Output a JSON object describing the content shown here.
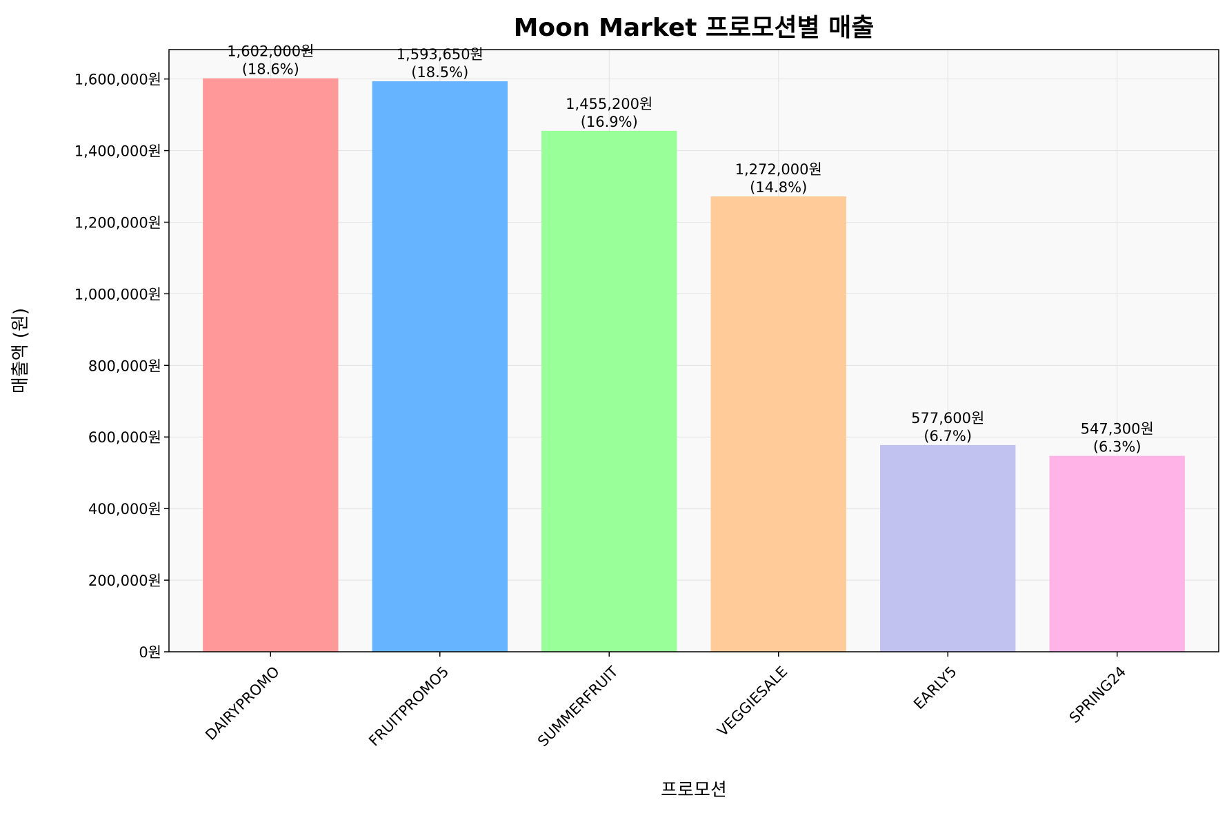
{
  "chart_data": {
    "type": "bar",
    "title": "Moon Market 프로모션별 매출",
    "xlabel": "프로모션",
    "ylabel": "매출액 (원)",
    "categories": [
      "DAIRYPROMO",
      "FRUITPROMO5",
      "SUMMERFRUIT",
      "VEGGIESALE",
      "EARLY5",
      "SPRING24"
    ],
    "values": [
      1602000,
      1593650,
      1455200,
      1272000,
      577600,
      547300
    ],
    "value_labels": [
      "1,602,000원",
      "1,593,650원",
      "1,455,200원",
      "1,272,000원",
      "577,600원",
      "547,300원"
    ],
    "percent_labels": [
      "(18.6%)",
      "(18.5%)",
      "(16.9%)",
      "(14.8%)",
      "(6.7%)",
      "(6.3%)"
    ],
    "colors": [
      "#ff9999",
      "#66b3ff",
      "#99ff99",
      "#ffcc99",
      "#c2c2f0",
      "#ffb3e6"
    ],
    "ylim": [
      0,
      1682100
    ],
    "yticks": [
      0,
      200000,
      400000,
      600000,
      800000,
      1000000,
      1200000,
      1400000,
      1600000
    ],
    "ytick_labels": [
      "0원",
      "200,000원",
      "400,000원",
      "600,000원",
      "800,000원",
      "1,000,000원",
      "1,200,000원",
      "1,400,000원",
      "1,600,000원"
    ],
    "grid": true,
    "background": "#f9f9f9"
  }
}
